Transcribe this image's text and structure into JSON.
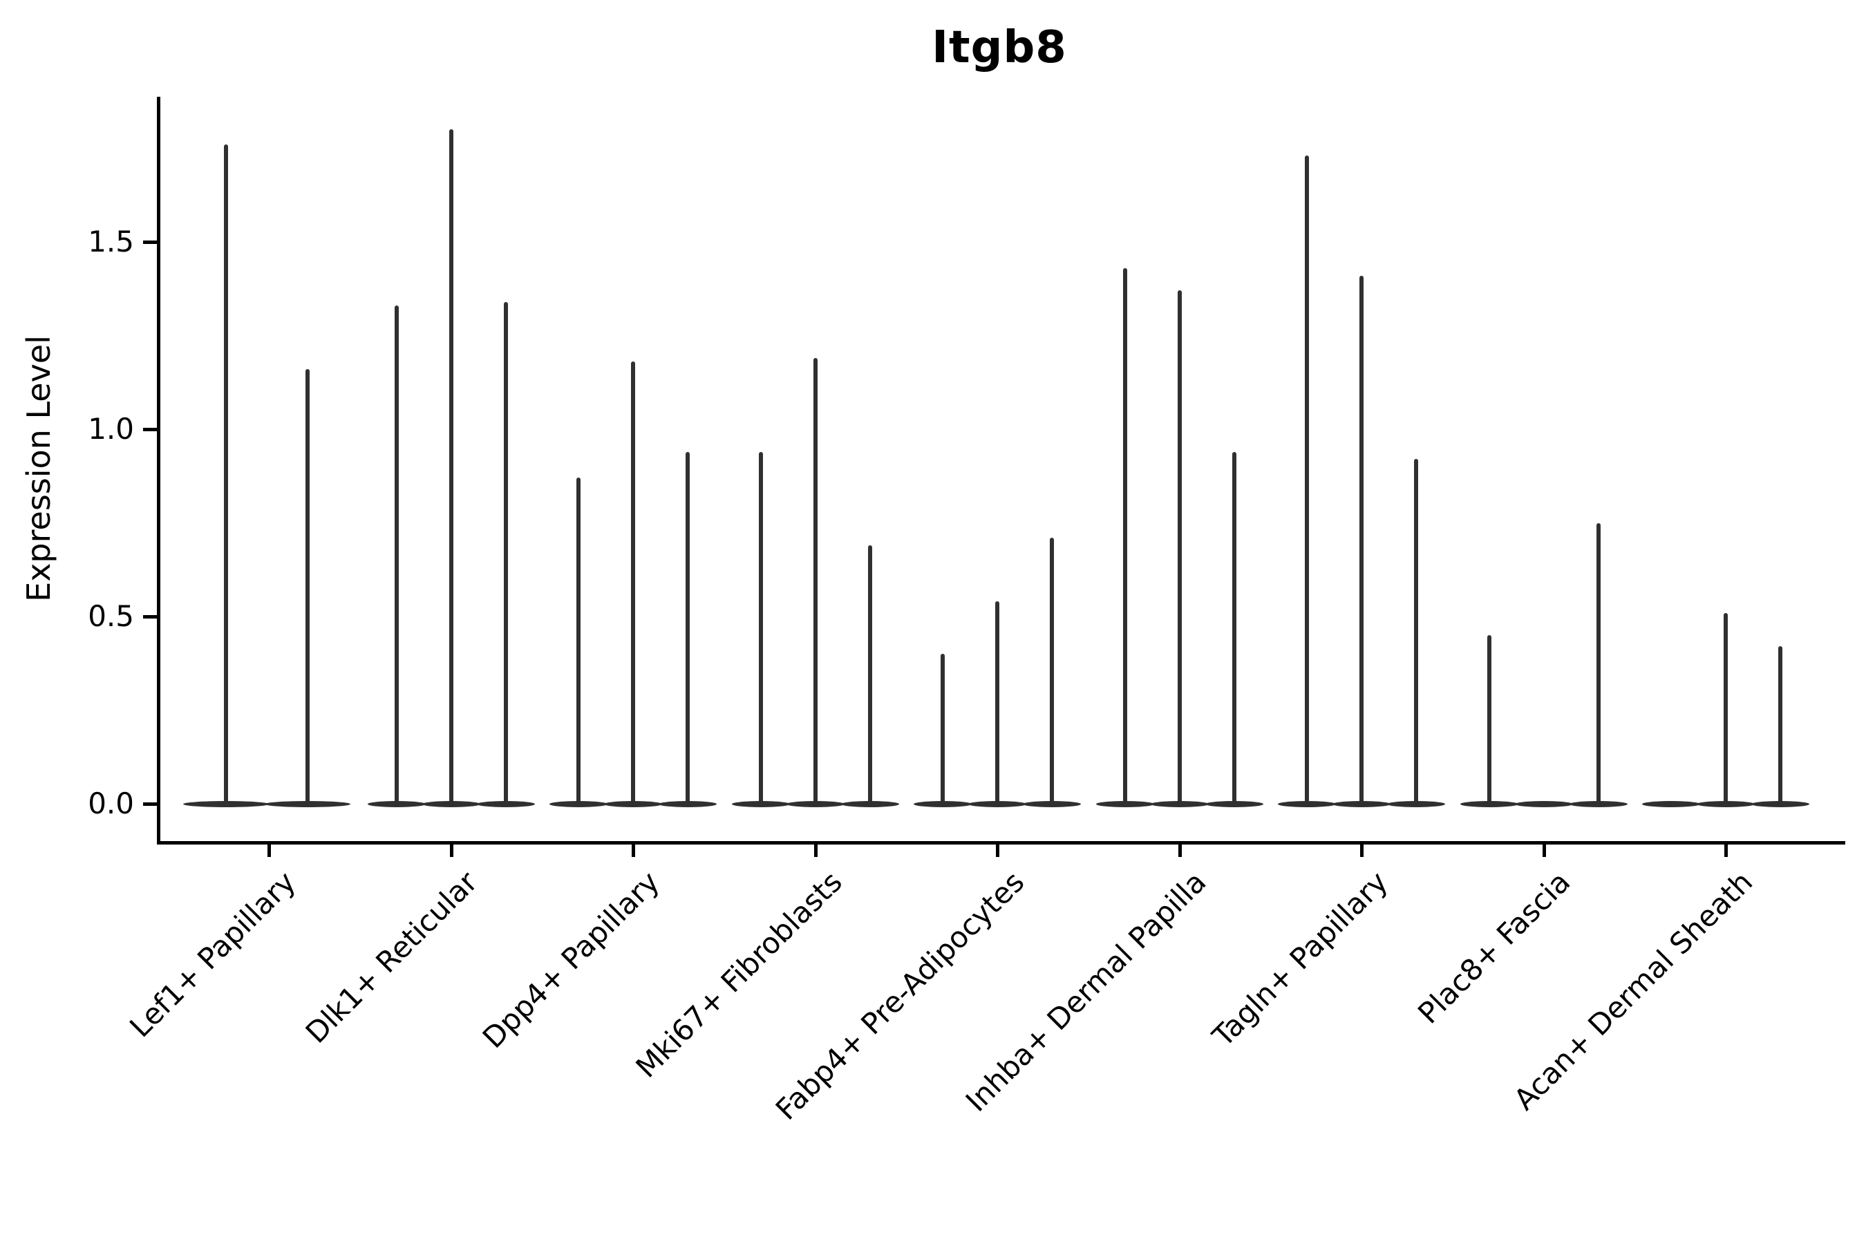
{
  "chart_data": {
    "type": "violin",
    "title": "Itgb8",
    "ylabel": "Expression Level",
    "xlabel": "",
    "yticks": [
      "0.0",
      "0.5",
      "1.0",
      "1.5"
    ],
    "ylim": [
      -0.1,
      1.89
    ],
    "grid": false,
    "legend": "none",
    "description": "Violin plot of Itgb8 expression; each category shows 2-3 very thin violins (spikes) whose mass is concentrated at 0 (wide flat disc at baseline) with a narrow tail up to the max expression value.",
    "categories": [
      "Lef1+ Papillary",
      "Dlk1+ Reticular",
      "Dpp4+ Papillary",
      "Mki67+ Fibroblasts",
      "Fabp4+ Pre-Adipocytes",
      "Inhba+ Dermal Papilla",
      "Tagln+ Papillary",
      "Plac8+ Fascia",
      "Acan+ Dermal Sheath"
    ],
    "groups": [
      {
        "category": "Lef1+ Papillary",
        "violins": [
          {
            "offset": -62,
            "width": 118,
            "max": 1.76
          },
          {
            "offset": 56,
            "width": 118,
            "max": 1.16
          }
        ]
      },
      {
        "category": "Dlk1+ Reticular",
        "violins": [
          {
            "offset": -79,
            "width": 78,
            "max": 1.33
          },
          {
            "offset": 0,
            "width": 78,
            "max": 1.8
          },
          {
            "offset": 79,
            "width": 78,
            "max": 1.34
          }
        ]
      },
      {
        "category": "Dpp4+ Papillary",
        "violins": [
          {
            "offset": -79,
            "width": 78,
            "max": 0.87
          },
          {
            "offset": 0,
            "width": 78,
            "max": 1.18
          },
          {
            "offset": 79,
            "width": 78,
            "max": 0.94
          }
        ]
      },
      {
        "category": "Mki67+ Fibroblasts",
        "violins": [
          {
            "offset": -79,
            "width": 78,
            "max": 0.94
          },
          {
            "offset": 0,
            "width": 78,
            "max": 1.19
          },
          {
            "offset": 79,
            "width": 78,
            "max": 0.69
          }
        ]
      },
      {
        "category": "Fabp4+ Pre-Adipocytes",
        "violins": [
          {
            "offset": -79,
            "width": 78,
            "max": 0.4
          },
          {
            "offset": 0,
            "width": 78,
            "max": 0.54
          },
          {
            "offset": 79,
            "width": 78,
            "max": 0.71
          }
        ]
      },
      {
        "category": "Inhba+ Dermal Papilla",
        "violins": [
          {
            "offset": -79,
            "width": 78,
            "max": 1.43
          },
          {
            "offset": 0,
            "width": 78,
            "max": 1.37
          },
          {
            "offset": 79,
            "width": 78,
            "max": 0.94
          }
        ]
      },
      {
        "category": "Tagln+ Papillary",
        "violins": [
          {
            "offset": -79,
            "width": 78,
            "max": 1.73
          },
          {
            "offset": 0,
            "width": 78,
            "max": 1.41
          },
          {
            "offset": 79,
            "width": 78,
            "max": 0.92
          }
        ]
      },
      {
        "category": "Plac8+ Fascia",
        "violins": [
          {
            "offset": -79,
            "width": 78,
            "max": 0.45
          },
          {
            "offset": 0,
            "width": 78,
            "max": 0.0
          },
          {
            "offset": 79,
            "width": 78,
            "max": 0.75
          }
        ]
      },
      {
        "category": "Acan+ Dermal Sheath",
        "violins": [
          {
            "offset": -79,
            "width": 78,
            "max": 0.0
          },
          {
            "offset": 0,
            "width": 78,
            "max": 0.51
          },
          {
            "offset": 79,
            "width": 78,
            "max": 0.42
          }
        ]
      }
    ],
    "colors": {
      "violin": "#303030",
      "axis": "#000000",
      "text": "#000000",
      "background": "#ffffff"
    }
  }
}
